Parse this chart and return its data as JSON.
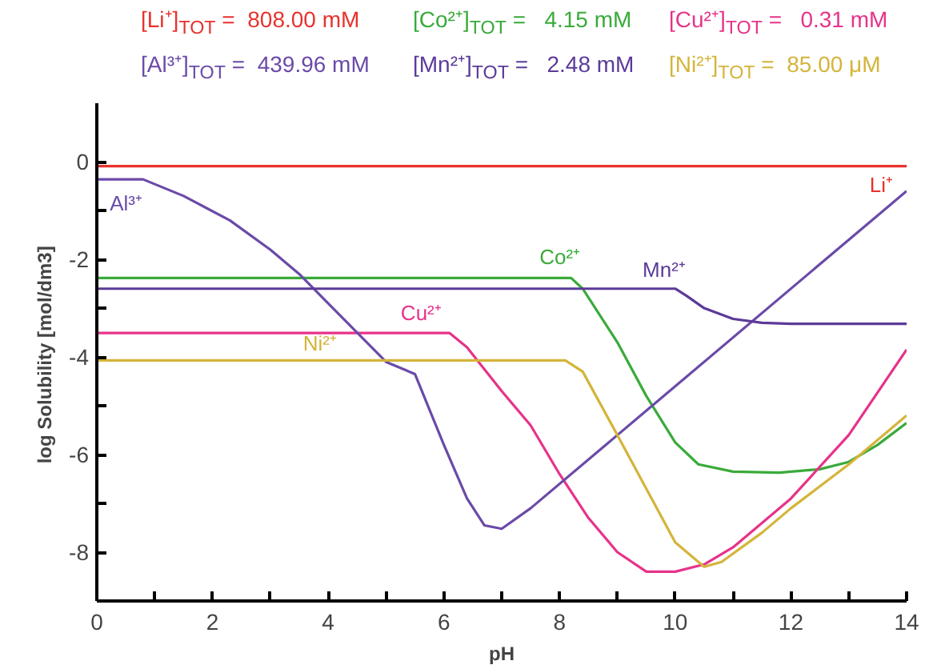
{
  "chart_data": {
    "type": "line",
    "xlabel": "pH",
    "ylabel": "log Solubility  [mol/dm3]",
    "annotations": [
      "[Li⁺]$_{TOT}$ =  808.00 mM",
      "[Co²⁺]$_{TOT}$ =   4.15 mM",
      "[Cu²⁺]$_{TOT}$ =   0.31 mM",
      "[Al³⁺]$_{TOT}$ =  439.96 mM",
      "[Mn²⁺]$_{TOT}$ =   2.48 mM",
      "[Ni²⁺]$_{TOT}$ =  85.00 μM"
    ],
    "xlim": [
      0,
      14
    ],
    "ylim": [
      -9,
      1.2
    ],
    "xticks": [
      0,
      {
        "value": 1,
        "label": null
      },
      2,
      {
        "value": 3,
        "label": null
      },
      4,
      {
        "value": 5,
        "label": null
      },
      6,
      {
        "value": 7,
        "label": null
      },
      8,
      {
        "value": 9,
        "label": null
      },
      10,
      {
        "value": 11,
        "label": null
      },
      12,
      {
        "value": 13,
        "label": null
      },
      14
    ],
    "yticks": [
      -8,
      {
        "value": -7,
        "label": null
      },
      -6,
      {
        "value": -5,
        "label": null
      },
      -4,
      {
        "value": -3,
        "label": null
      },
      -2,
      {
        "value": -1,
        "label": null
      },
      0
    ],
    "grid": false,
    "marker": "none",
    "line_style": "solid",
    "series": [
      {
        "name": "Li⁺",
        "color": "#e8322d",
        "x": [
          0,
          14
        ],
        "values": [
          -0.09,
          -0.09
        ]
      },
      {
        "name": "Co²⁺",
        "color": "#3aaa3a",
        "x": [
          0,
          8.2,
          8.4,
          9,
          9.5,
          10,
          10.4,
          11,
          11.8,
          12.5,
          13,
          13.5,
          14
        ],
        "values": [
          -2.38,
          -2.38,
          -2.6,
          -3.7,
          -4.8,
          -5.75,
          -6.2,
          -6.35,
          -6.37,
          -6.3,
          -6.15,
          -5.8,
          -5.35
        ]
      },
      {
        "name": "Cu²⁺",
        "color": "#e6338a",
        "x": [
          0,
          6.1,
          6.4,
          7,
          7.5,
          8,
          8.5,
          9,
          9.5,
          10,
          10.5,
          11,
          12,
          13,
          14
        ],
        "values": [
          -3.51,
          -3.51,
          -3.8,
          -4.7,
          -5.4,
          -6.4,
          -7.3,
          -8.0,
          -8.4,
          -8.4,
          -8.25,
          -7.9,
          -6.9,
          -5.6,
          -3.85
        ]
      },
      {
        "name": "Al³⁺",
        "color": "#6b4aa8",
        "x": [
          0,
          0.8,
          1.5,
          2.3,
          3,
          3.5,
          4,
          4.5,
          5,
          5.5,
          6,
          6.4,
          6.7,
          7,
          7.5,
          14
        ],
        "values": [
          -0.36,
          -0.36,
          -0.7,
          -1.2,
          -1.8,
          -2.3,
          -2.9,
          -3.5,
          -4.1,
          -4.35,
          -5.8,
          -6.9,
          -7.45,
          -7.52,
          -7.1,
          -0.6
        ]
      },
      {
        "name": "Mn²⁺",
        "color": "#5b3a99",
        "x": [
          0,
          10,
          10.2,
          10.5,
          11,
          11.5,
          12,
          14
        ],
        "values": [
          -2.6,
          -2.6,
          -2.75,
          -3.0,
          -3.22,
          -3.3,
          -3.32,
          -3.32
        ]
      },
      {
        "name": "Ni²⁺",
        "color": "#d4b43a",
        "x": [
          0,
          8.1,
          8.4,
          9,
          9.5,
          10,
          10.5,
          10.8,
          11.5,
          12,
          13,
          14
        ],
        "values": [
          -4.07,
          -4.07,
          -4.3,
          -5.6,
          -6.7,
          -7.8,
          -8.3,
          -8.2,
          -7.6,
          -7.1,
          -6.2,
          -5.2
        ]
      }
    ]
  }
}
